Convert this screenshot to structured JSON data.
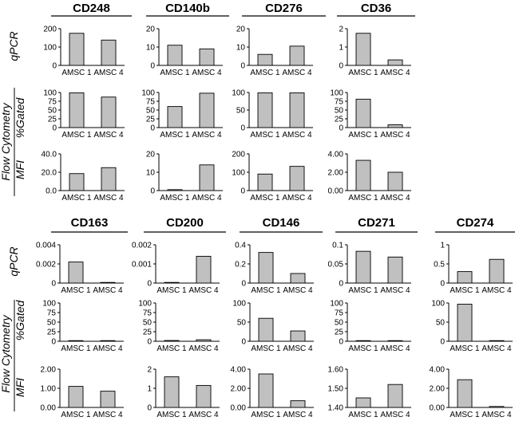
{
  "figure": {
    "row_labels": {
      "qpcr": "qPCR",
      "gated": "%Gated",
      "mfi": "MFI",
      "flow": "Flow Cytometry"
    },
    "bar_color": "#c0c0c0",
    "axis_color": "#000000"
  },
  "chart_data": [
    {
      "type": "bar",
      "title": "CD248",
      "row": "qPCR",
      "categories": [
        "AMSC 1",
        "AMSC 4"
      ],
      "values": [
        175,
        138
      ],
      "ylim": [
        0,
        200
      ],
      "yticks": [
        "0",
        "100",
        "200"
      ]
    },
    {
      "type": "bar",
      "title": "CD248",
      "row": "%Gated",
      "categories": [
        "AMSC 1",
        "AMSC 4"
      ],
      "values": [
        99,
        87
      ],
      "ylim": [
        0,
        100
      ],
      "yticks": [
        "0",
        "25",
        "50",
        "75",
        "100"
      ]
    },
    {
      "type": "bar",
      "title": "CD248",
      "row": "MFI",
      "categories": [
        "AMSC 1",
        "AMSC 4"
      ],
      "values": [
        18.5,
        25
      ],
      "ylim": [
        0,
        40
      ],
      "yticks": [
        "0.0",
        "20.0",
        "40.0"
      ]
    },
    {
      "type": "bar",
      "title": "CD140b",
      "row": "qPCR",
      "categories": [
        "AMSC 1",
        "AMSC 4"
      ],
      "values": [
        11,
        9
      ],
      "ylim": [
        0,
        20
      ],
      "yticks": [
        "0",
        "10",
        "20"
      ]
    },
    {
      "type": "bar",
      "title": "CD140b",
      "row": "%Gated",
      "categories": [
        "AMSC 1",
        "AMSC 4"
      ],
      "values": [
        60,
        98
      ],
      "ylim": [
        0,
        100
      ],
      "yticks": [
        "0",
        "25",
        "50",
        "75",
        "100"
      ]
    },
    {
      "type": "bar",
      "title": "CD140b",
      "row": "MFI",
      "categories": [
        "AMSC 1",
        "AMSC 4"
      ],
      "values": [
        0.5,
        14
      ],
      "ylim": [
        0,
        20
      ],
      "yticks": [
        "0",
        "10",
        "20"
      ]
    },
    {
      "type": "bar",
      "title": "CD276",
      "row": "qPCR",
      "categories": [
        "AMSC 1",
        "AMSC 4"
      ],
      "values": [
        6,
        10.5
      ],
      "ylim": [
        0,
        20
      ],
      "yticks": [
        "0",
        "10",
        "20"
      ]
    },
    {
      "type": "bar",
      "title": "CD276",
      "row": "%Gated",
      "categories": [
        "AMSC 1",
        "AMSC 4"
      ],
      "values": [
        99,
        99
      ],
      "ylim": [
        0,
        100
      ],
      "yticks": [
        "0",
        "50",
        "100"
      ]
    },
    {
      "type": "bar",
      "title": "CD276",
      "row": "MFI",
      "categories": [
        "AMSC 1",
        "AMSC 4"
      ],
      "values": [
        90,
        132
      ],
      "ylim": [
        0,
        200
      ],
      "yticks": [
        "0",
        "100",
        "200"
      ]
    },
    {
      "type": "bar",
      "title": "CD36",
      "row": "qPCR",
      "categories": [
        "AMSC 1",
        "AMSC 4"
      ],
      "values": [
        1.75,
        0.3
      ],
      "ylim": [
        0,
        2
      ],
      "yticks": [
        "0",
        "1",
        "2"
      ]
    },
    {
      "type": "bar",
      "title": "CD36",
      "row": "%Gated",
      "categories": [
        "AMSC 1",
        "AMSC 4"
      ],
      "values": [
        81,
        8
      ],
      "ylim": [
        0,
        100
      ],
      "yticks": [
        "0",
        "25",
        "50",
        "75",
        "100"
      ]
    },
    {
      "type": "bar",
      "title": "CD36",
      "row": "MFI",
      "categories": [
        "AMSC 1",
        "AMSC 4"
      ],
      "values": [
        3.3,
        2.0
      ],
      "ylim": [
        0,
        4
      ],
      "yticks": [
        "0.00",
        "2.00",
        "4.00"
      ]
    },
    {
      "type": "bar",
      "title": "CD163",
      "row": "qPCR",
      "categories": [
        "AMSC 1",
        "AMSC 4"
      ],
      "values": [
        0.0022,
        0
      ],
      "ylim": [
        0,
        0.004
      ],
      "yticks": [
        "0",
        "0.002",
        "0.004"
      ]
    },
    {
      "type": "bar",
      "title": "CD163",
      "row": "%Gated",
      "categories": [
        "AMSC 1",
        "AMSC 4"
      ],
      "values": [
        0.5,
        0.5
      ],
      "ylim": [
        0,
        100
      ],
      "yticks": [
        "0",
        "25",
        "50",
        "75",
        "100"
      ]
    },
    {
      "type": "bar",
      "title": "CD163",
      "row": "MFI",
      "categories": [
        "AMSC 1",
        "AMSC 4"
      ],
      "values": [
        1.1,
        0.85
      ],
      "ylim": [
        0,
        2
      ],
      "yticks": [
        "0.00",
        "1.00",
        "2.00"
      ]
    },
    {
      "type": "bar",
      "title": "CD200",
      "row": "qPCR",
      "categories": [
        "AMSC 1",
        "AMSC 4"
      ],
      "values": [
        0,
        0.0014
      ],
      "ylim": [
        0,
        0.002
      ],
      "yticks": [
        "0",
        "0.001",
        "0.002"
      ]
    },
    {
      "type": "bar",
      "title": "CD200",
      "row": "%Gated",
      "categories": [
        "AMSC 1",
        "AMSC 4"
      ],
      "values": [
        2,
        4
      ],
      "ylim": [
        0,
        100
      ],
      "yticks": [
        "0",
        "25",
        "50",
        "75",
        "100"
      ]
    },
    {
      "type": "bar",
      "title": "CD200",
      "row": "MFI",
      "categories": [
        "AMSC 1",
        "AMSC 4"
      ],
      "values": [
        1.6,
        1.15
      ],
      "ylim": [
        0,
        2
      ],
      "yticks": [
        "0",
        "1",
        "2"
      ]
    },
    {
      "type": "bar",
      "title": "CD146",
      "row": "qPCR",
      "categories": [
        "AMSC 1",
        "AMSC 4"
      ],
      "values": [
        0.32,
        0.1
      ],
      "ylim": [
        0,
        0.4
      ],
      "yticks": [
        "0",
        "0.2",
        "0.4"
      ]
    },
    {
      "type": "bar",
      "title": "CD146",
      "row": "%Gated",
      "categories": [
        "AMSC 1",
        "AMSC 4"
      ],
      "values": [
        60,
        27
      ],
      "ylim": [
        0,
        100
      ],
      "yticks": [
        "0",
        "50",
        "100"
      ]
    },
    {
      "type": "bar",
      "title": "CD146",
      "row": "MFI",
      "categories": [
        "AMSC 1",
        "AMSC 4"
      ],
      "values": [
        3.5,
        0.7
      ],
      "ylim": [
        0,
        4
      ],
      "yticks": [
        "0.00",
        "2.00",
        "4.00"
      ]
    },
    {
      "type": "bar",
      "title": "CD271",
      "row": "qPCR",
      "categories": [
        "AMSC 1",
        "AMSC 4"
      ],
      "values": [
        0.083,
        0.068
      ],
      "ylim": [
        0,
        0.1
      ],
      "yticks": [
        "0",
        "0.05",
        "0.1"
      ]
    },
    {
      "type": "bar",
      "title": "CD271",
      "row": "%Gated",
      "categories": [
        "AMSC 1",
        "AMSC 4"
      ],
      "values": [
        1,
        1
      ],
      "ylim": [
        0,
        100
      ],
      "yticks": [
        "0",
        "25",
        "50",
        "75",
        "100"
      ]
    },
    {
      "type": "bar",
      "title": "CD271",
      "row": "MFI",
      "categories": [
        "AMSC 1",
        "AMSC 4"
      ],
      "values": [
        1.45,
        1.52
      ],
      "ylim": [
        1.4,
        1.6
      ],
      "yticks": [
        "1.40",
        "1.50",
        "1.60"
      ]
    },
    {
      "type": "bar",
      "title": "CD274",
      "row": "qPCR",
      "categories": [
        "AMSC 1",
        "AMSC 4"
      ],
      "values": [
        0.3,
        0.62
      ],
      "ylim": [
        0,
        1
      ],
      "yticks": [
        "0",
        "0.5",
        "1"
      ]
    },
    {
      "type": "bar",
      "title": "CD274",
      "row": "%Gated",
      "categories": [
        "AMSC 1",
        "AMSC 4"
      ],
      "values": [
        97,
        0.5
      ],
      "ylim": [
        0,
        100
      ],
      "yticks": [
        "0",
        "50",
        "100"
      ]
    },
    {
      "type": "bar",
      "title": "CD274",
      "row": "MFI",
      "categories": [
        "AMSC 1",
        "AMSC 4"
      ],
      "values": [
        2.9,
        0.1
      ],
      "ylim": [
        0,
        4
      ],
      "yticks": [
        "0.00",
        "2.00",
        "4.00"
      ]
    }
  ]
}
